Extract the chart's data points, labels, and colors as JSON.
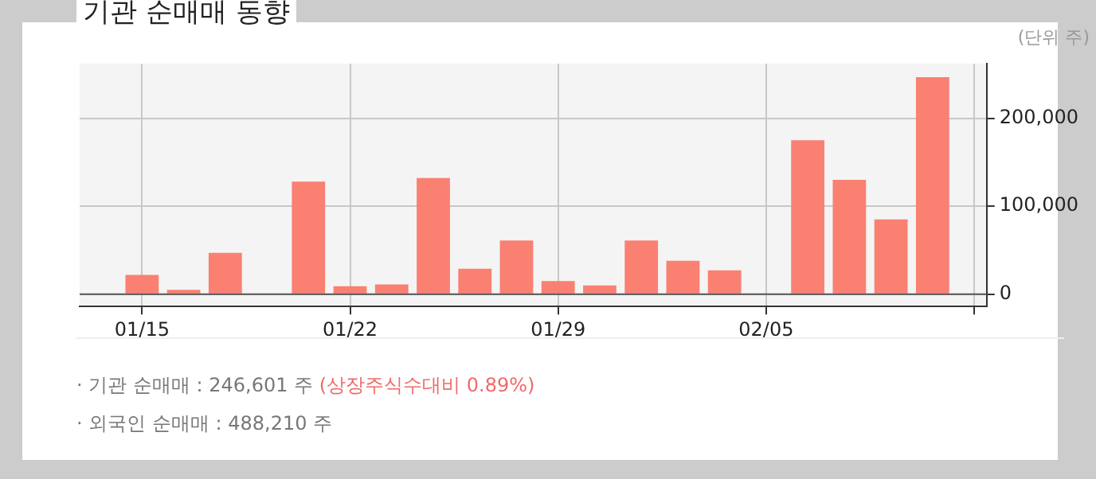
{
  "chart_data": {
    "type": "bar",
    "title": "기관 순매매 동향",
    "categories": [
      "01/15",
      null,
      null,
      null,
      null,
      "01/22",
      null,
      null,
      null,
      null,
      "01/29",
      null,
      null,
      null,
      null,
      "02/05",
      null,
      null,
      null,
      null,
      null
    ],
    "values": [
      22000,
      5000,
      47000,
      null,
      128000,
      9000,
      11000,
      132000,
      29000,
      61000,
      15000,
      10000,
      61000,
      38000,
      27000,
      0,
      175000,
      130000,
      85000,
      246601,
      null
    ],
    "color": "#fa8072",
    "ylim": [
      -14000,
      262000
    ],
    "yticks": [
      {
        "value": 0,
        "label": "0"
      },
      {
        "value": 100000,
        "label": "100,000"
      },
      {
        "value": 200000,
        "label": "200,000"
      }
    ],
    "grid": true,
    "legend": false,
    "annotations": [
      "(단위 주)",
      "· 기관 순매매 : 246,601 주",
      "(상장주식수대비 0.89%)",
      "· 외국인 순매매 : 488,210 주"
    ]
  }
}
